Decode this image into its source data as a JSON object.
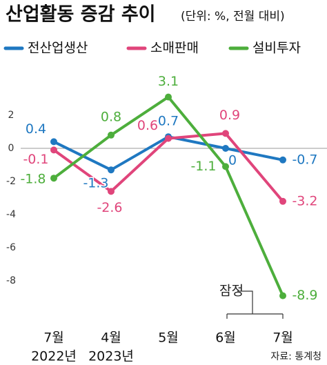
{
  "chart_data": {
    "type": "line",
    "title": "산업활동 증감 추이",
    "subtitle": "(단위: %, 전월 대비)",
    "categories": [
      "7월",
      "4월",
      "5월",
      "6월",
      "7월"
    ],
    "year_labels": [
      "2022년",
      "2023년"
    ],
    "series": [
      {
        "name": "전산업생산",
        "color": "#1f78c1",
        "values": [
          0.4,
          -1.3,
          0.7,
          0,
          -0.7
        ]
      },
      {
        "name": "소매판매",
        "color": "#e0457b",
        "values": [
          -0.1,
          -2.6,
          0.6,
          0.9,
          -3.2
        ]
      },
      {
        "name": "설비투자",
        "color": "#4dae3c",
        "values": [
          -1.8,
          0.8,
          3.1,
          -1.1,
          -8.9
        ]
      }
    ],
    "ylim": [
      -10,
      4
    ],
    "yticks": [
      2,
      0,
      -2,
      -4,
      -6,
      -8
    ],
    "annotation": "잠정",
    "source": "자료: 통계청"
  }
}
